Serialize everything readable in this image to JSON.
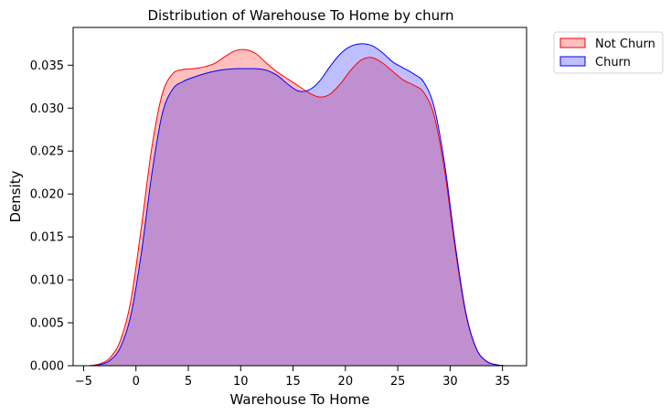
{
  "chart_data": {
    "type": "area",
    "title": "Distribution of Warehouse To Home by churn",
    "xlabel": "Warehouse To Home",
    "ylabel": "Density",
    "xlim": [
      -6,
      37.3
    ],
    "ylim": [
      0,
      0.0394
    ],
    "xticks": [
      -5,
      0,
      5,
      10,
      15,
      20,
      25,
      30,
      35
    ],
    "xtick_labels": [
      "−5",
      "0",
      "5",
      "10",
      "15",
      "20",
      "25",
      "30",
      "35"
    ],
    "yticks": [
      0,
      0.005,
      0.01,
      0.015,
      0.02,
      0.025,
      0.03,
      0.035
    ],
    "ytick_labels": [
      "0.000",
      "0.005",
      "0.010",
      "0.015",
      "0.020",
      "0.025",
      "0.030",
      "0.035"
    ],
    "grid": false,
    "legend_position": "outside-top-right",
    "series": [
      {
        "name": "Not Churn",
        "line_color": "#ff0000",
        "fill_color": "#ff0000",
        "fill_opacity": 0.25,
        "x": [
          -4.5,
          -3.5,
          -2.5,
          -1.5,
          -0.5,
          0.5,
          1.5,
          2.5,
          3.5,
          4.5,
          5.5,
          6.5,
          7.5,
          8.5,
          9.5,
          10.5,
          11.5,
          12.5,
          13.5,
          14.5,
          15.5,
          16.5,
          17.5,
          18.5,
          19.5,
          20.5,
          21.5,
          22.5,
          23.5,
          24.5,
          25.5,
          26.5,
          27.5,
          28.5,
          29.5,
          30.5,
          31.5,
          32.5,
          33.5,
          34.5,
          35.3
        ],
        "y": [
          0.0,
          0.0002,
          0.0009,
          0.0029,
          0.0075,
          0.016,
          0.0253,
          0.0316,
          0.034,
          0.0345,
          0.0346,
          0.0348,
          0.0352,
          0.036,
          0.0367,
          0.0368,
          0.0363,
          0.0352,
          0.0342,
          0.0334,
          0.0326,
          0.0318,
          0.0313,
          0.0316,
          0.0328,
          0.0344,
          0.0356,
          0.0359,
          0.0353,
          0.0343,
          0.0333,
          0.0327,
          0.0318,
          0.029,
          0.0225,
          0.0135,
          0.006,
          0.002,
          0.0005,
          0.0001,
          0.0
        ]
      },
      {
        "name": "Churn",
        "line_color": "#0000ff",
        "fill_color": "#0000ff",
        "fill_opacity": 0.25,
        "x": [
          -4.5,
          -3.5,
          -2.5,
          -1.5,
          -0.5,
          0.5,
          1.5,
          2.5,
          3.5,
          4.5,
          5.5,
          6.5,
          7.5,
          8.5,
          9.5,
          10.5,
          11.5,
          12.5,
          13.5,
          14.5,
          15.5,
          16.5,
          17.5,
          18.5,
          19.5,
          20.5,
          21.5,
          22.5,
          23.5,
          24.5,
          25.5,
          26.5,
          27.5,
          28.5,
          29.5,
          30.5,
          31.5,
          32.5,
          33.5,
          34.5,
          35.3
        ],
        "y": [
          0.0,
          0.0001,
          0.0006,
          0.0021,
          0.0058,
          0.013,
          0.0222,
          0.0293,
          0.0322,
          0.0331,
          0.0336,
          0.034,
          0.0343,
          0.0345,
          0.0346,
          0.0346,
          0.0346,
          0.0344,
          0.0338,
          0.0328,
          0.032,
          0.0321,
          0.0331,
          0.0348,
          0.0363,
          0.0372,
          0.0375,
          0.0373,
          0.0365,
          0.0354,
          0.0347,
          0.034,
          0.033,
          0.03,
          0.0233,
          0.014,
          0.0062,
          0.002,
          0.0005,
          0.0001,
          0.0
        ]
      }
    ]
  }
}
